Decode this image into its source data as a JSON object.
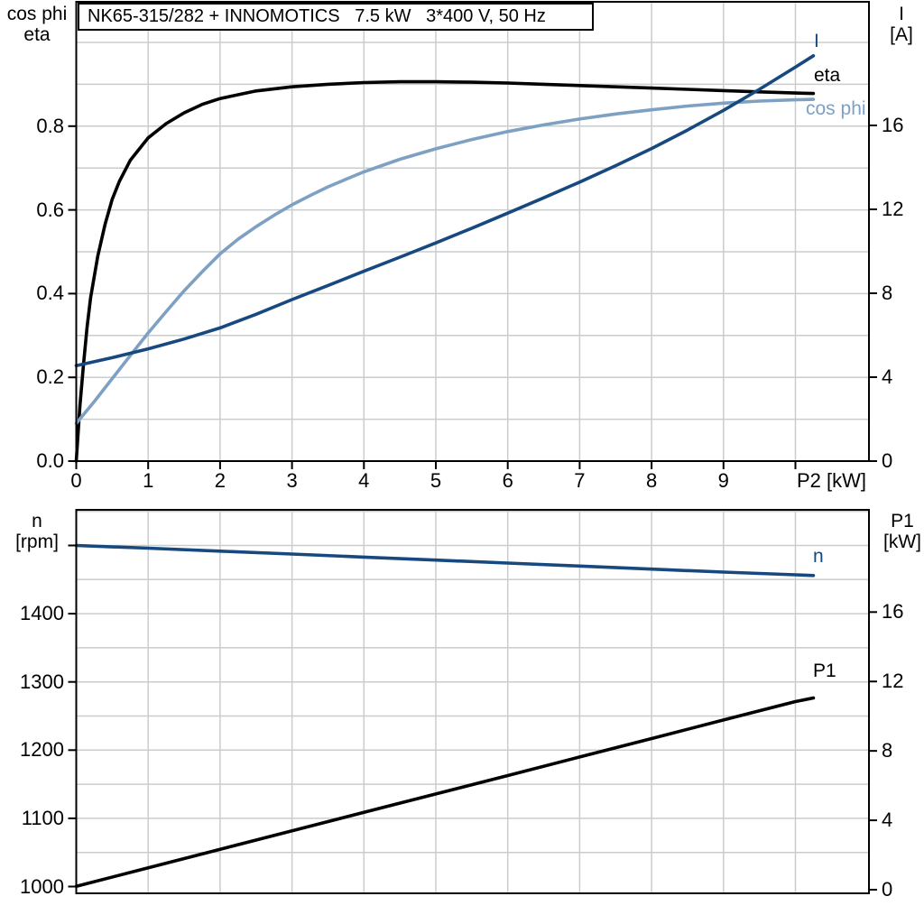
{
  "title": "NK65-315/282 + INNOMOTICS   7.5 kW   3*400 V, 50 Hz",
  "colors": {
    "black": "#000000",
    "dark_blue": "#17497f",
    "light_blue": "#7ea0c3",
    "grid": "#c9cdd0",
    "frame": "#000000",
    "background": "#ffffff"
  },
  "top_plot": {
    "left_header_line1": "cos phi",
    "left_header_line2": "eta",
    "right_header_line1": "I",
    "right_header_line2": "[A]",
    "x_axis_label": "P2 [kW]",
    "curve_label_I": "I",
    "curve_label_eta": "eta",
    "curve_label_cos_phi": "cos phi"
  },
  "bottom_plot": {
    "left_header_line1": "n",
    "left_header_line2": "[rpm]",
    "right_header_line1": "P1",
    "right_header_line2": "[kW]",
    "curve_label_n": "n",
    "curve_label_P1": "P1"
  },
  "chart_data": [
    {
      "id": "top",
      "type": "line",
      "title": "NK65-315/282 + INNOMOTICS   7.5 kW   3*400 V, 50 Hz",
      "x_label": "P2 [kW]",
      "x_range": [
        0,
        11.0
      ],
      "y_left_label": "cos phi / eta",
      "y_left_range": [
        0,
        1.1
      ],
      "y_right_label": "I [A]",
      "y_right_range": [
        0,
        21.9
      ],
      "grid": true,
      "x_grid": [
        1,
        2,
        3,
        4,
        5,
        6,
        7,
        8,
        9,
        10
      ],
      "y_grid": [
        0.1,
        0.2,
        0.3,
        0.4,
        0.5,
        0.6,
        0.7,
        0.8,
        0.9,
        1.0
      ],
      "x_ticks": [
        {
          "v": 0,
          "label": "0"
        },
        {
          "v": 1,
          "label": "1"
        },
        {
          "v": 2,
          "label": "2"
        },
        {
          "v": 3,
          "label": "3"
        },
        {
          "v": 4,
          "label": "4"
        },
        {
          "v": 5,
          "label": "5"
        },
        {
          "v": 6,
          "label": "6"
        },
        {
          "v": 7,
          "label": "7"
        },
        {
          "v": 8,
          "label": "8"
        },
        {
          "v": 9,
          "label": "9"
        },
        {
          "v": 10,
          "label": ""
        }
      ],
      "y_left_ticks": [
        {
          "v": 0,
          "label": "0.0"
        },
        {
          "v": 0.2,
          "label": "0.2"
        },
        {
          "v": 0.4,
          "label": "0.4"
        },
        {
          "v": 0.6,
          "label": "0.6"
        },
        {
          "v": 0.8,
          "label": "0.8"
        }
      ],
      "y_right_ticks": [
        {
          "v": 0,
          "label": "0"
        },
        {
          "v": 4,
          "label": "4"
        },
        {
          "v": 8,
          "label": "8"
        },
        {
          "v": 12,
          "label": "12"
        },
        {
          "v": 16,
          "label": "16"
        }
      ],
      "series": [
        {
          "name": "eta",
          "label": "eta",
          "axis": "left",
          "color_key": "black",
          "points": [
            [
              0,
              0
            ],
            [
              0.05,
              0.13
            ],
            [
              0.1,
              0.23
            ],
            [
              0.15,
              0.32
            ],
            [
              0.2,
              0.39
            ],
            [
              0.3,
              0.49
            ],
            [
              0.4,
              0.565
            ],
            [
              0.5,
              0.625
            ],
            [
              0.6,
              0.668
            ],
            [
              0.75,
              0.718
            ],
            [
              1,
              0.772
            ],
            [
              1.25,
              0.806
            ],
            [
              1.5,
              0.832
            ],
            [
              1.75,
              0.852
            ],
            [
              2,
              0.866
            ],
            [
              2.5,
              0.884
            ],
            [
              3,
              0.894
            ],
            [
              3.5,
              0.9
            ],
            [
              4,
              0.904
            ],
            [
              4.5,
              0.906
            ],
            [
              5,
              0.906
            ],
            [
              5.5,
              0.905
            ],
            [
              6,
              0.903
            ],
            [
              6.5,
              0.9
            ],
            [
              7,
              0.897
            ],
            [
              7.5,
              0.894
            ],
            [
              8,
              0.891
            ],
            [
              8.5,
              0.888
            ],
            [
              9,
              0.885
            ],
            [
              9.5,
              0.882
            ],
            [
              10,
              0.879
            ],
            [
              10.25,
              0.878
            ]
          ]
        },
        {
          "name": "cos_phi",
          "label": "cos phi",
          "axis": "left",
          "color_key": "light_blue",
          "points": [
            [
              0,
              0.09
            ],
            [
              0.25,
              0.142
            ],
            [
              0.5,
              0.197
            ],
            [
              0.75,
              0.252
            ],
            [
              1,
              0.306
            ],
            [
              1.25,
              0.357
            ],
            [
              1.5,
              0.407
            ],
            [
              1.75,
              0.452
            ],
            [
              2,
              0.495
            ],
            [
              2.25,
              0.53
            ],
            [
              2.5,
              0.56
            ],
            [
              2.75,
              0.587
            ],
            [
              3,
              0.612
            ],
            [
              3.25,
              0.634
            ],
            [
              3.5,
              0.655
            ],
            [
              4,
              0.691
            ],
            [
              4.5,
              0.721
            ],
            [
              5,
              0.746
            ],
            [
              5.5,
              0.768
            ],
            [
              6,
              0.787
            ],
            [
              6.5,
              0.803
            ],
            [
              7,
              0.817
            ],
            [
              7.5,
              0.829
            ],
            [
              8,
              0.839
            ],
            [
              8.5,
              0.848
            ],
            [
              9,
              0.855
            ],
            [
              9.5,
              0.86
            ],
            [
              10,
              0.863
            ],
            [
              10.25,
              0.864
            ]
          ]
        },
        {
          "name": "I",
          "label": "I",
          "axis": "right",
          "color_key": "dark_blue",
          "points": [
            [
              0,
              4.55
            ],
            [
              0.5,
              4.93
            ],
            [
              1,
              5.35
            ],
            [
              1.5,
              5.82
            ],
            [
              2,
              6.35
            ],
            [
              2.5,
              7.0
            ],
            [
              3,
              7.7
            ],
            [
              3.5,
              8.37
            ],
            [
              4,
              9.05
            ],
            [
              4.5,
              9.72
            ],
            [
              5,
              10.4
            ],
            [
              5.5,
              11.1
            ],
            [
              6,
              11.82
            ],
            [
              6.5,
              12.55
            ],
            [
              7,
              13.3
            ],
            [
              7.5,
              14.08
            ],
            [
              8,
              14.9
            ],
            [
              8.5,
              15.78
            ],
            [
              9,
              16.72
            ],
            [
              9.5,
              17.72
            ],
            [
              10,
              18.78
            ],
            [
              10.25,
              19.32
            ]
          ]
        }
      ]
    },
    {
      "id": "bottom",
      "type": "line",
      "title": "",
      "x_label": "",
      "x_range": [
        0,
        11.0
      ],
      "y_left_label": "n [rpm]",
      "y_left_range": [
        990,
        1552
      ],
      "y_right_label": "P1 [kW]",
      "y_right_range": [
        -0.2,
        21.9
      ],
      "grid": true,
      "x_grid": [
        1,
        2,
        3,
        4,
        5,
        6,
        7,
        8,
        9,
        10
      ],
      "y_grid": [
        1050,
        1100,
        1150,
        1200,
        1250,
        1300,
        1350,
        1400,
        1450,
        1500,
        1550
      ],
      "x_ticks": [],
      "y_left_ticks": [
        {
          "v": 1000,
          "label": "1000"
        },
        {
          "v": 1100,
          "label": "1100"
        },
        {
          "v": 1200,
          "label": "1200"
        },
        {
          "v": 1300,
          "label": "1300"
        },
        {
          "v": 1400,
          "label": "1400"
        },
        {
          "v": 1500,
          "label": ""
        }
      ],
      "y_right_ticks": [
        {
          "v": 0,
          "label": "0"
        },
        {
          "v": 4,
          "label": "4"
        },
        {
          "v": 8,
          "label": "8"
        },
        {
          "v": 12,
          "label": "12"
        },
        {
          "v": 16,
          "label": "16"
        }
      ],
      "series": [
        {
          "name": "n",
          "label": "n",
          "axis": "left",
          "color_key": "dark_blue",
          "points": [
            [
              0,
              1500
            ],
            [
              1,
              1496
            ],
            [
              2,
              1491.7
            ],
            [
              3,
              1487.4
            ],
            [
              4,
              1483
            ],
            [
              5,
              1478.6
            ],
            [
              6,
              1474.2
            ],
            [
              7,
              1469.8
            ],
            [
              8,
              1465.4
            ],
            [
              9,
              1461
            ],
            [
              10,
              1457
            ],
            [
              10.25,
              1456
            ]
          ]
        },
        {
          "name": "P1",
          "label": "P1",
          "axis": "right",
          "color_key": "black",
          "points": [
            [
              0,
              0.2
            ],
            [
              1,
              1.26
            ],
            [
              2,
              2.33
            ],
            [
              3,
              3.39
            ],
            [
              4,
              4.46
            ],
            [
              5,
              5.52
            ],
            [
              6,
              6.58
            ],
            [
              7,
              7.65
            ],
            [
              8,
              8.71
            ],
            [
              9,
              9.78
            ],
            [
              10,
              10.84
            ],
            [
              10.25,
              11.05
            ]
          ]
        }
      ]
    }
  ]
}
